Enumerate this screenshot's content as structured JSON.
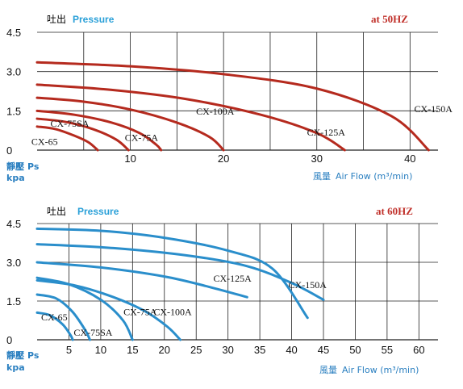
{
  "chart_data": [
    {
      "type": "line",
      "title_cn": "吐出",
      "title_en": "Pressure",
      "frequency": "at  50HZ",
      "ylabel_cn": "靜壓",
      "ylabel_unit": "Ps",
      "ylabel_sub": "kpa",
      "xlabel_cn": "風量",
      "xlabel_en": "Air Flow (m³/min)",
      "xlim": [
        0,
        43
      ],
      "ylim": [
        0,
        4.5
      ],
      "x_ticks": [
        10,
        20,
        30,
        40
      ],
      "y_ticks": [
        0,
        1.5,
        3.0,
        4.5
      ],
      "y_tick_labels": [
        "0",
        "1.5",
        "3.0",
        "4.5"
      ],
      "color": "#b52a1e",
      "series": [
        {
          "name": "CX-65",
          "label_at": [
            0.8,
            0.2
          ],
          "x": [
            0,
            2,
            4,
            5.5,
            6.5
          ],
          "y": [
            0.9,
            0.8,
            0.55,
            0.3,
            0
          ]
        },
        {
          "name": "CX-75SA",
          "label_at": [
            3.5,
            0.9
          ],
          "x": [
            0,
            3,
            6,
            8.5,
            9.8
          ],
          "y": [
            1.2,
            1.08,
            0.8,
            0.4,
            0
          ]
        },
        {
          "name": "CX-75A",
          "label_at": [
            11.2,
            0.35
          ],
          "x": [
            0,
            4,
            8,
            11,
            12.8,
            13.3
          ],
          "y": [
            1.5,
            1.35,
            1.05,
            0.65,
            0.2,
            0
          ]
        },
        {
          "name": "CX-100A",
          "label_at": [
            19.1,
            1.35
          ],
          "x": [
            0,
            5,
            10,
            15,
            18.5,
            20
          ],
          "y": [
            2.0,
            1.85,
            1.55,
            1.05,
            0.5,
            0
          ]
        },
        {
          "name": "CX-125A",
          "label_at": [
            31.0,
            0.55
          ],
          "x": [
            0,
            8,
            16,
            24,
            30,
            33
          ],
          "y": [
            2.5,
            2.3,
            1.95,
            1.35,
            0.65,
            0
          ]
        },
        {
          "name": "CX-150A",
          "label_at": [
            42.5,
            1.45
          ],
          "x": [
            0,
            10,
            20,
            30,
            38,
            42
          ],
          "y": [
            3.35,
            3.2,
            2.9,
            2.35,
            1.3,
            0
          ]
        }
      ]
    },
    {
      "type": "line",
      "title_cn": "吐出",
      "title_en": "Pressure",
      "frequency": "at  60HZ",
      "ylabel_cn": "靜壓",
      "ylabel_unit": "Ps",
      "ylabel_sub": "kpa",
      "xlabel_cn": "風量",
      "xlabel_en": "Air Flow (m³/min)",
      "xlim": [
        0,
        63
      ],
      "ylim": [
        0,
        4.5
      ],
      "x_ticks": [
        5,
        10,
        15,
        20,
        25,
        30,
        35,
        40,
        45,
        50,
        55,
        60
      ],
      "y_ticks": [
        0,
        1.5,
        3.0,
        4.5
      ],
      "y_tick_labels": [
        "0",
        "1.5",
        "3.0",
        "4.5"
      ],
      "color": "#2a8ecb",
      "series": [
        {
          "name": "CX-65",
          "label_at": [
            2.7,
            0.75
          ],
          "x": [
            0,
            2,
            4,
            5.2,
            5.6
          ],
          "y": [
            1.05,
            0.95,
            0.6,
            0.2,
            0
          ]
        },
        {
          "name": "CX-75SA",
          "label_at": [
            8.8,
            0.15
          ],
          "x": [
            0,
            3,
            5.5,
            7.5,
            8.3
          ],
          "y": [
            1.75,
            1.6,
            1.1,
            0.4,
            0
          ]
        },
        {
          "name": "CX-75A",
          "label_at": [
            16.2,
            0.95
          ],
          "x": [
            0,
            5,
            10,
            13.5,
            15.0
          ],
          "y": [
            2.4,
            2.15,
            1.55,
            0.75,
            0
          ]
        },
        {
          "name": "CX-100A",
          "label_at": [
            21.3,
            0.95
          ],
          "x": [
            0,
            6,
            12,
            17,
            20.5,
            22.5
          ],
          "y": [
            2.3,
            2.1,
            1.65,
            1.1,
            0.5,
            0
          ]
        },
        {
          "name": "CX-125A",
          "label_at": [
            30.7,
            2.25
          ],
          "x": [
            0,
            10,
            20,
            27,
            33
          ],
          "y": [
            3.0,
            2.8,
            2.45,
            2.05,
            1.65
          ]
        },
        {
          "name": "CX-150A",
          "label_at": [
            42.5,
            2.0
          ],
          "x": [
            0,
            12,
            24,
            33,
            40,
            45
          ],
          "y": [
            3.7,
            3.55,
            3.25,
            2.85,
            2.2,
            1.55
          ]
        },
        {
          "name": "",
          "label_at": null,
          "x": [
            0,
            10,
            20,
            30,
            37,
            42.5
          ],
          "y": [
            4.3,
            4.22,
            3.95,
            3.45,
            2.75,
            0.85
          ]
        }
      ]
    }
  ]
}
